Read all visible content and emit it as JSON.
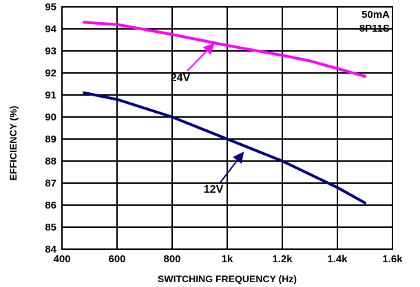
{
  "chart_data": {
    "type": "line",
    "xlabel": "SWITCHING FREQUENCY (Hz)",
    "ylabel": "EFFICIENCY (%)",
    "xlim": [
      400,
      1600
    ],
    "ylim": [
      84,
      95
    ],
    "x_ticks": [
      400,
      600,
      800,
      1000,
      1200,
      1400,
      1600
    ],
    "x_tick_labels": [
      "400",
      "600",
      "800",
      "1k",
      "1.2k",
      "1.4k",
      "1.6k"
    ],
    "y_ticks": [
      84,
      85,
      86,
      87,
      88,
      89,
      90,
      91,
      92,
      93,
      94,
      95
    ],
    "y_tick_labels": [
      "84",
      "85",
      "86",
      "87",
      "88",
      "89",
      "90",
      "91",
      "92",
      "93",
      "94",
      "95"
    ],
    "grid": true,
    "annotations": [
      "50mA",
      "8P11S"
    ],
    "series": [
      {
        "name": "24V",
        "color": "#ff00ff",
        "x": [
          480,
          600,
          800,
          1000,
          1200,
          1300,
          1400,
          1500
        ],
        "y": [
          94.3,
          94.2,
          93.75,
          93.25,
          92.8,
          92.55,
          92.2,
          91.85
        ]
      },
      {
        "name": "12V",
        "color": "#000080",
        "x": [
          480,
          600,
          800,
          900,
          1000,
          1100,
          1200,
          1300,
          1400,
          1500
        ],
        "y": [
          91.1,
          90.8,
          90.0,
          89.5,
          89.0,
          88.5,
          88.0,
          87.4,
          86.8,
          86.1
        ]
      }
    ]
  }
}
